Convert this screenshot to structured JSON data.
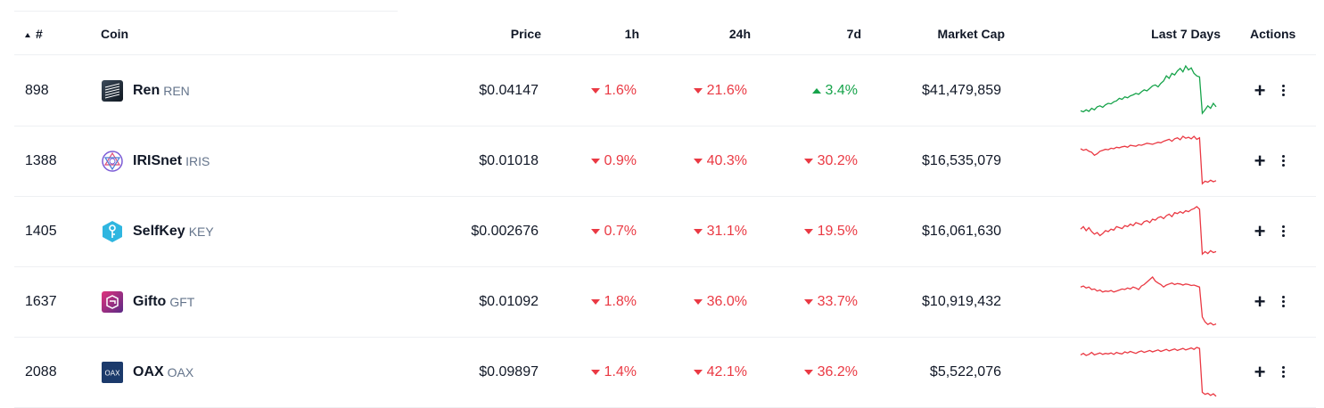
{
  "header": {
    "rank": "#",
    "coin": "Coin",
    "price": "Price",
    "h1": "1h",
    "h24": "24h",
    "d7": "7d",
    "market_cap": "Market Cap",
    "last7": "Last 7 Days",
    "actions": "Actions"
  },
  "colors": {
    "up": "#16a34a",
    "down": "#ea3943"
  },
  "rows": [
    {
      "rank": "898",
      "name": "Ren",
      "symbol": "REN",
      "icon": "ren-logo",
      "price": "$0.04147",
      "h1": "1.6%",
      "h1_dir": "down",
      "h24": "21.6%",
      "h24_dir": "down",
      "d7": "3.4%",
      "d7_dir": "up",
      "market_cap": "$41,479,859",
      "spark_trend": "up",
      "spark": [
        0.1,
        0.08,
        0.12,
        0.09,
        0.15,
        0.12,
        0.18,
        0.2,
        0.17,
        0.22,
        0.25,
        0.24,
        0.28,
        0.3,
        0.35,
        0.33,
        0.38,
        0.36,
        0.4,
        0.42,
        0.45,
        0.43,
        0.48,
        0.52,
        0.5,
        0.55,
        0.6,
        0.62,
        0.58,
        0.65,
        0.7,
        0.8,
        0.75,
        0.85,
        0.82,
        0.9,
        0.95,
        0.88,
        1.0,
        0.92,
        0.96,
        0.85,
        0.8,
        0.78,
        0.05,
        0.12,
        0.2,
        0.15,
        0.25,
        0.18
      ]
    },
    {
      "rank": "1388",
      "name": "IRISnet",
      "symbol": "IRIS",
      "icon": "irisnet-logo",
      "price": "$0.01018",
      "h1": "0.9%",
      "h1_dir": "down",
      "h24": "40.3%",
      "h24_dir": "down",
      "d7": "30.2%",
      "d7_dir": "down",
      "market_cap": "$16,535,079",
      "spark_trend": "down",
      "spark": [
        0.75,
        0.72,
        0.74,
        0.7,
        0.68,
        0.62,
        0.65,
        0.7,
        0.72,
        0.74,
        0.73,
        0.76,
        0.75,
        0.78,
        0.77,
        0.79,
        0.8,
        0.78,
        0.82,
        0.81,
        0.8,
        0.83,
        0.82,
        0.84,
        0.86,
        0.85,
        0.84,
        0.86,
        0.88,
        0.87,
        0.9,
        0.92,
        0.94,
        0.9,
        0.95,
        0.97,
        0.93,
        1.0,
        0.96,
        0.98,
        0.95,
        1.0,
        0.94,
        0.97,
        0.05,
        0.1,
        0.08,
        0.12,
        0.09,
        0.11
      ]
    },
    {
      "rank": "1405",
      "name": "SelfKey",
      "symbol": "KEY",
      "icon": "selfkey-logo",
      "price": "$0.002676",
      "h1": "0.7%",
      "h1_dir": "down",
      "h24": "31.1%",
      "h24_dir": "down",
      "d7": "19.5%",
      "d7_dir": "down",
      "market_cap": "$16,061,630",
      "spark_trend": "down",
      "spark": [
        0.55,
        0.6,
        0.52,
        0.58,
        0.5,
        0.45,
        0.48,
        0.42,
        0.46,
        0.52,
        0.5,
        0.55,
        0.53,
        0.6,
        0.58,
        0.56,
        0.62,
        0.6,
        0.65,
        0.62,
        0.68,
        0.66,
        0.64,
        0.7,
        0.72,
        0.68,
        0.75,
        0.73,
        0.78,
        0.8,
        0.76,
        0.82,
        0.85,
        0.8,
        0.88,
        0.86,
        0.9,
        0.87,
        0.92,
        0.9,
        0.94,
        0.96,
        1.0,
        0.95,
        0.05,
        0.1,
        0.06,
        0.12,
        0.08,
        0.1
      ]
    },
    {
      "rank": "1637",
      "name": "Gifto",
      "symbol": "GFT",
      "icon": "gifto-logo",
      "price": "$0.01092",
      "h1": "1.8%",
      "h1_dir": "down",
      "h24": "36.0%",
      "h24_dir": "down",
      "d7": "33.7%",
      "d7_dir": "down",
      "market_cap": "$10,919,432",
      "spark_trend": "down",
      "spark": [
        0.8,
        0.82,
        0.78,
        0.8,
        0.75,
        0.76,
        0.72,
        0.74,
        0.7,
        0.72,
        0.71,
        0.73,
        0.7,
        0.72,
        0.74,
        0.76,
        0.75,
        0.78,
        0.76,
        0.8,
        0.78,
        0.75,
        0.82,
        0.85,
        0.9,
        0.95,
        1.0,
        0.92,
        0.88,
        0.85,
        0.8,
        0.84,
        0.86,
        0.88,
        0.85,
        0.87,
        0.86,
        0.84,
        0.86,
        0.85,
        0.83,
        0.84,
        0.82,
        0.8,
        0.2,
        0.1,
        0.05,
        0.08,
        0.04,
        0.06
      ]
    },
    {
      "rank": "2088",
      "name": "OAX",
      "symbol": "OAX",
      "icon": "oax-logo",
      "price": "$0.09897",
      "h1": "1.4%",
      "h1_dir": "down",
      "h24": "42.1%",
      "h24_dir": "down",
      "d7": "36.2%",
      "d7_dir": "down",
      "market_cap": "$5,522,076",
      "spark_trend": "down",
      "spark": [
        0.85,
        0.88,
        0.84,
        0.86,
        0.9,
        0.85,
        0.87,
        0.89,
        0.86,
        0.88,
        0.87,
        0.89,
        0.86,
        0.9,
        0.88,
        0.87,
        0.91,
        0.89,
        0.92,
        0.9,
        0.88,
        0.91,
        0.93,
        0.9,
        0.92,
        0.94,
        0.91,
        0.93,
        0.95,
        0.92,
        0.94,
        0.96,
        0.93,
        0.95,
        0.97,
        0.94,
        0.96,
        0.98,
        0.95,
        0.97,
        0.99,
        0.96,
        1.0,
        0.98,
        0.1,
        0.06,
        0.08,
        0.04,
        0.07,
        0.02
      ]
    }
  ]
}
